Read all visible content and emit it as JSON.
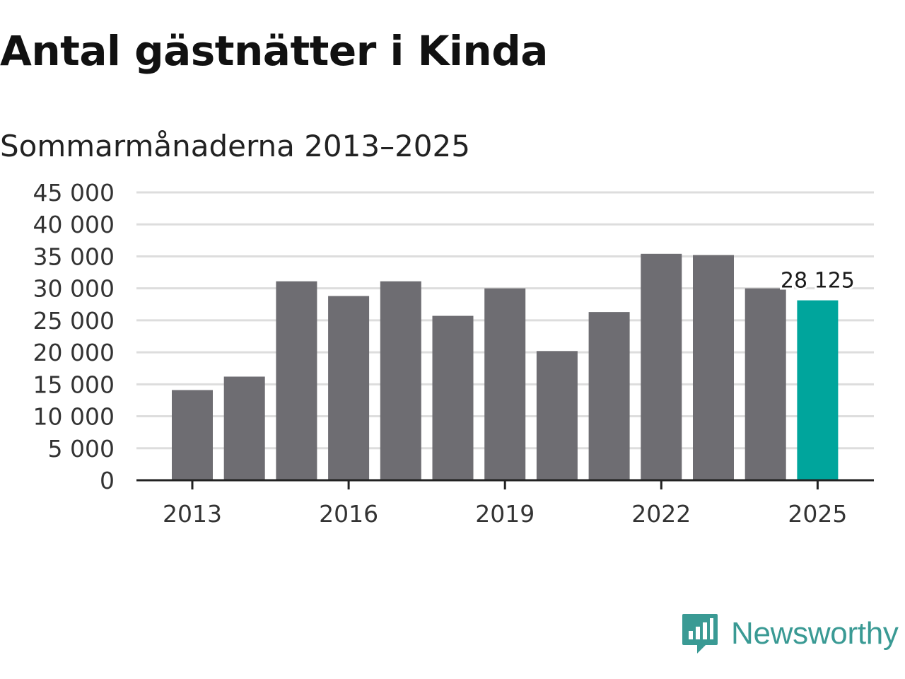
{
  "title": "Antal gästnätter i Kinda",
  "subtitle": "Sommarmånaderna 2013–2025",
  "brand": {
    "name": "Newsworthy",
    "icon": "newsworthy-logo-icon",
    "color": "#3a9a94"
  },
  "colors": {
    "bar": "#6e6d72",
    "highlight": "#00a59c",
    "grid": "#dddddd",
    "axis": "#222222"
  },
  "chart_data": {
    "type": "bar",
    "categories": [
      "2013",
      "2014",
      "2015",
      "2016",
      "2017",
      "2018",
      "2019",
      "2020",
      "2021",
      "2022",
      "2023",
      "2024",
      "2025"
    ],
    "values": [
      14100,
      16200,
      31100,
      28800,
      31100,
      25700,
      30000,
      20200,
      26300,
      35400,
      35200,
      30000,
      28125
    ],
    "highlight_index": 12,
    "data_labels": [
      {
        "index": 12,
        "text": "28 125"
      }
    ],
    "x_tick_labels": [
      "2013",
      "2016",
      "2019",
      "2022",
      "2025"
    ],
    "y_ticks": [
      0,
      5000,
      10000,
      15000,
      20000,
      25000,
      30000,
      35000,
      40000,
      45000
    ],
    "y_tick_labels": [
      "0",
      "5 000",
      "10 000",
      "15 000",
      "20 000",
      "25 000",
      "30 000",
      "35 000",
      "40 000",
      "45 000"
    ],
    "ylim": [
      0,
      45000
    ],
    "grid": true,
    "legend": "none"
  }
}
